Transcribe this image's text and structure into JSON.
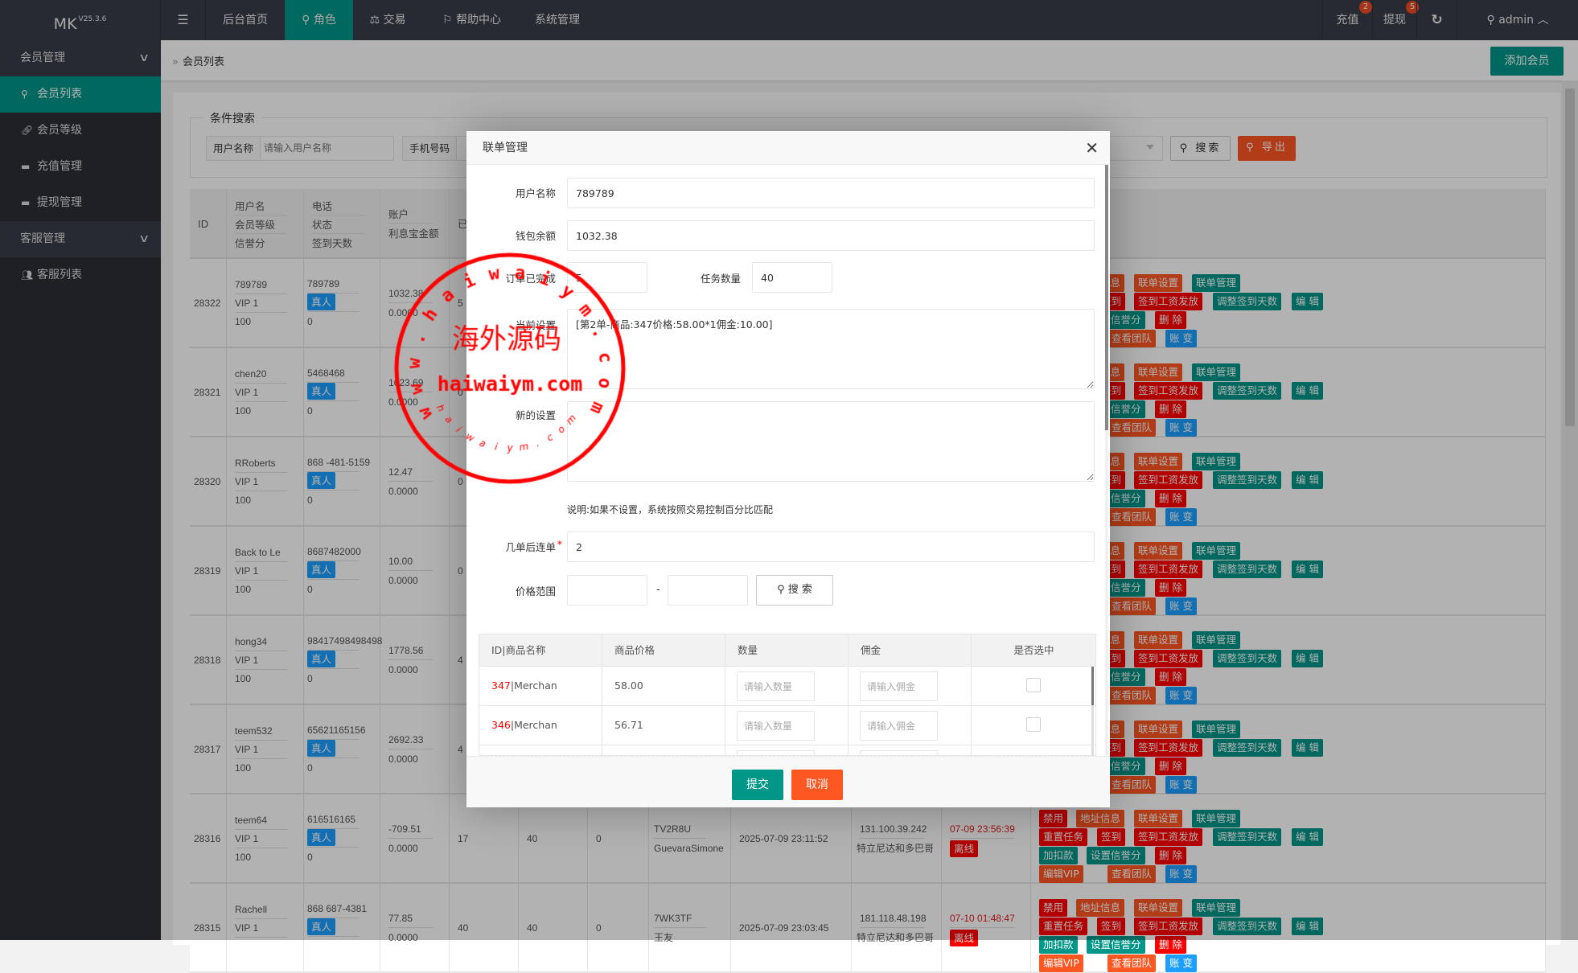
{
  "app": {
    "logo": "MK",
    "version": "V25.3.6"
  },
  "topnav": {
    "menu_icon": "hamburger-icon",
    "items": [
      {
        "label": "后台首页",
        "icon": ""
      },
      {
        "label": "角色",
        "icon": "user-icon",
        "active": true
      },
      {
        "label": "交易",
        "icon": "scale-icon"
      },
      {
        "label": "帮助中心",
        "icon": "flag-icon"
      },
      {
        "label": "系统管理",
        "icon": ""
      }
    ],
    "right": {
      "recharge": {
        "label": "充值",
        "badge": "2"
      },
      "withdraw": {
        "label": "提现",
        "badge": "5"
      },
      "refresh_icon": "refresh-icon",
      "user": "admin"
    }
  },
  "sidebar": {
    "groups": [
      {
        "label": "会员管理",
        "items": [
          {
            "label": "会员列表",
            "icon": "user-icon",
            "active": true
          },
          {
            "label": "会员等级",
            "icon": "link-icon"
          },
          {
            "label": "充值管理",
            "icon": "monitor-icon"
          },
          {
            "label": "提现管理",
            "icon": "monitor-icon"
          }
        ]
      },
      {
        "label": "客服管理",
        "items": [
          {
            "label": "客服列表",
            "icon": "users-icon"
          }
        ]
      }
    ]
  },
  "breadcrumb": {
    "current": "会员列表",
    "add_button": "添加会员"
  },
  "search": {
    "legend": "条件搜索",
    "username_label": "用户名称",
    "username_placeholder": "请输入用户名称",
    "phone_label": "手机号码",
    "search_button": "搜索",
    "export_button": "导出"
  },
  "table": {
    "headers": {
      "id": "ID",
      "user": [
        "用户名",
        "会员等级",
        "信誉分"
      ],
      "phone": [
        "电话",
        "状态",
        "签到天数"
      ],
      "account": [
        "账户",
        "利息宝金额"
      ],
      "col5": "已"
    },
    "actions": [
      [
        {
          "label": "禁用",
          "color": "red"
        },
        {
          "label": "地址信息",
          "color": "orange"
        },
        {
          "label": "联单设置",
          "color": "orange"
        },
        {
          "label": "联单管理",
          "color": "teal"
        }
      ],
      [
        {
          "label": "重置任务",
          "color": "red"
        },
        {
          "label": "签到",
          "color": "red"
        },
        {
          "label": "签到工资发放",
          "color": "red"
        },
        {
          "label": "调整签到天数",
          "color": "teal"
        },
        {
          "label": "编 辑",
          "color": "teal"
        }
      ],
      [
        {
          "label": "加扣款",
          "color": "teal"
        },
        {
          "label": "设置信誉分",
          "color": "teal"
        },
        {
          "label": "删 除",
          "color": "red"
        }
      ],
      [
        {
          "label": "编辑VIP",
          "color": "orange"
        },
        {
          "label": "查看团队",
          "color": "orange"
        },
        {
          "label": "账 变",
          "color": "blue"
        }
      ]
    ],
    "rows": [
      {
        "id": "28322",
        "username": "789789",
        "level": "VIP 1",
        "credit": "100",
        "phone": "789789",
        "status": "真人",
        "sign_days": "0",
        "balance": "1032.38",
        "interest": "0.0000",
        "c5": "5"
      },
      {
        "id": "28321",
        "username": "chen20",
        "level": "VIP 1",
        "credit": "100",
        "phone": "5468468",
        "status": "真人",
        "sign_days": "0",
        "balance": "1623.69",
        "interest": "0.0000",
        "c5": "0"
      },
      {
        "id": "28320",
        "username": "RRoberts",
        "level": "VIP 1",
        "credit": "100",
        "phone": "868 -481-5159",
        "status": "真人",
        "sign_days": "0",
        "balance": "12.47",
        "interest": "0.0000",
        "c5": "0"
      },
      {
        "id": "28319",
        "username": "Back to Le",
        "level": "VIP 1",
        "credit": "100",
        "phone": "8687482000",
        "status": "真人",
        "sign_days": "0",
        "balance": "10.00",
        "interest": "0.0000",
        "c5": "0"
      },
      {
        "id": "28318",
        "username": "hong34",
        "level": "VIP 1",
        "credit": "100",
        "phone": "98417498498498",
        "status": "真人",
        "sign_days": "0",
        "balance": "1778.56",
        "interest": "0.0000",
        "c5": "4"
      },
      {
        "id": "28317",
        "username": "teem532",
        "level": "VIP 1",
        "credit": "100",
        "phone": "65621165156",
        "status": "真人",
        "sign_days": "0",
        "balance": "2692.33",
        "interest": "0.0000",
        "c5": "4"
      },
      {
        "id": "28316",
        "username": "teem64",
        "level": "VIP 1",
        "credit": "100",
        "phone": "616516165",
        "status": "真人",
        "sign_days": "0",
        "balance": "-709.51",
        "interest": "0.0000",
        "c5": "17",
        "c6": "40",
        "c7": "0",
        "code": "TV2R8U",
        "name": "GuevaraSimone",
        "reg_time": "2025-07-09 23:11:52",
        "ip": "131.100.39.242",
        "region": "特立尼达和多巴哥",
        "login_time": "07-09 23:56:39",
        "online": "离线"
      },
      {
        "id": "28315",
        "username": "Rachell",
        "level": "VIP 1",
        "credit": "",
        "phone": "868 687-4381",
        "status": "真人",
        "sign_days": "",
        "balance": "77.85",
        "interest": "0.0000",
        "c5": "40",
        "c6": "40",
        "c7": "0",
        "code": "7WK3TF",
        "name": "王友",
        "reg_time": "2025-07-09 23:03:45",
        "ip": "181.118.48.198",
        "region": "特立尼达和多巴哥",
        "login_time": "07-10 01:48:47",
        "online": "离线"
      }
    ]
  },
  "modal": {
    "title": "联单管理",
    "username_label": "用户名称",
    "username": "789789",
    "wallet_label": "钱包余额",
    "wallet": "1032.38",
    "completed_label": "订单已完成",
    "completed": "5",
    "task_count_label": "任务数量",
    "task_count": "40",
    "current_label": "当前设置",
    "current": "[第2单-商品:347价格:58.00*1佣金:10.00]",
    "new_label": "新的设置",
    "new": "",
    "note": "说明:如果不设置，系统按照交易控制百分比匹配",
    "after_label": "几单后连单",
    "after": "2",
    "price_label": "价格范围",
    "price_sep": "-",
    "search_button": "搜 索",
    "goods_headers": [
      "ID|商品名称",
      "商品价格",
      "数量",
      "佣金",
      "是否选中"
    ],
    "goods": [
      {
        "id": "347",
        "name": "|Merchan",
        "price": "58.00",
        "qty_placeholder": "请输入数量",
        "commission_placeholder": "请输入佣金",
        "checked": false
      },
      {
        "id": "346",
        "name": "|Merchan",
        "price": "56.71",
        "qty_placeholder": "请输入数量",
        "commission_placeholder": "请输入佣金",
        "checked": false
      }
    ],
    "submit": "提交",
    "cancel": "取消"
  },
  "watermark": {
    "center": "海外源码",
    "domain": "haiwaiym.com",
    "arc": "www.haiwaiym.com",
    "arc_small": "haiwaiym.com"
  },
  "colors": {
    "teal": "#009688",
    "orange": "#FF5722",
    "red": "#FF0000",
    "blue": "#1E9FFF",
    "stamp": "#FF0000"
  }
}
